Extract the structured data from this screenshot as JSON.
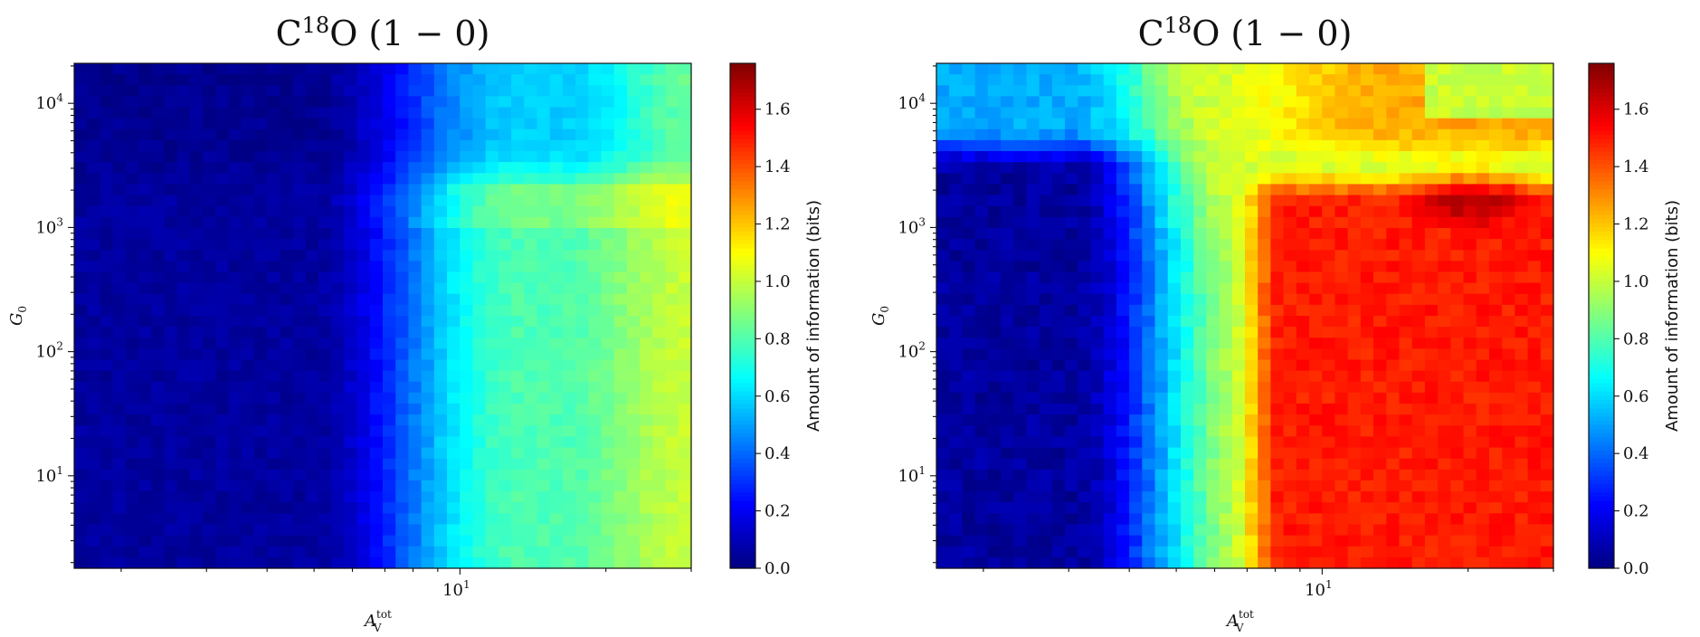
{
  "chart_data": [
    {
      "type": "heatmap",
      "title_base": "C",
      "title_superscript": "18",
      "title_rest": "O",
      "title_transition": "(1 − 0)",
      "xlabel": "A",
      "xlabel_sup": "tot",
      "xlabel_sub": "V",
      "ylabel": "G",
      "ylabel_sub": "0",
      "xscale": "log",
      "yscale": "log",
      "xlim": [
        1.6,
        30.0
      ],
      "ylim": [
        1.8,
        21000.0
      ],
      "x_tick_labels": [
        {
          "value": 10,
          "base": "10",
          "exp": "1"
        }
      ],
      "y_tick_labels": [
        {
          "value": 10,
          "base": "10",
          "exp": "1"
        },
        {
          "value": 100,
          "base": "10",
          "exp": "2"
        },
        {
          "value": 1000,
          "base": "10",
          "exp": "3"
        },
        {
          "value": 10000,
          "base": "10",
          "exp": "4"
        }
      ],
      "colorbar": {
        "label": "Amount of information (bits)",
        "range": [
          0.0,
          1.76
        ],
        "ticks": [
          "0.0",
          "0.2",
          "0.4",
          "0.6",
          "0.8",
          "1.0",
          "1.2",
          "1.4",
          "1.6"
        ]
      },
      "grid": false,
      "legend": "none",
      "description": "Low information (dark blue) at small A_V across all G0; rises through cyan around A_V ~ 9–12; reaches green (~0.9–1.0) at the highest A_V for mid-to-low G0. A band of slightly higher information extends near G0 ~ 10^3 at high A_V, with medium blue values above."
    },
    {
      "type": "heatmap",
      "title_base": "C",
      "title_superscript": "18",
      "title_rest": "O",
      "title_transition": "(1 − 0)",
      "xlabel": "A",
      "xlabel_sup": "tot",
      "xlabel_sub": "V",
      "ylabel": "G",
      "ylabel_sub": "0",
      "xscale": "log",
      "yscale": "log",
      "xlim": [
        1.6,
        30.0
      ],
      "ylim": [
        1.8,
        21000.0
      ],
      "x_tick_labels": [
        {
          "value": 10,
          "base": "10",
          "exp": "1"
        }
      ],
      "y_tick_labels": [
        {
          "value": 10,
          "base": "10",
          "exp": "1"
        },
        {
          "value": 100,
          "base": "10",
          "exp": "2"
        },
        {
          "value": 1000,
          "base": "10",
          "exp": "3"
        },
        {
          "value": 10000,
          "base": "10",
          "exp": "4"
        }
      ],
      "colorbar": {
        "label": "Amount of information (bits)",
        "range": [
          0.0,
          1.76
        ],
        "ticks": [
          "0.0",
          "0.2",
          "0.4",
          "0.6",
          "0.8",
          "1.0",
          "1.2",
          "1.4",
          "1.6"
        ]
      },
      "grid": false,
      "legend": "none",
      "description": "Dark blue at low A_V, transitioning through cyan/yellow around A_V ~ 6–8, to a large red-orange region (~1.4–1.6) for A_V ≳ 8 and G0 ≲ 10^3, peaking (dark red, ~1.75) near A_V ~ 20–25 and G0 ~ 10^3. Above G0 ~ 2×10^3 at high A_V values drop to cyan and blue."
    }
  ]
}
